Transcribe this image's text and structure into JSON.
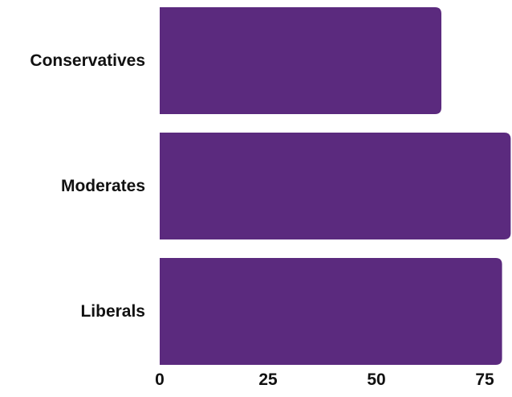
{
  "chart_data": {
    "type": "bar",
    "orientation": "horizontal",
    "categories": [
      "Conservatives",
      "Moderates",
      "Liberals"
    ],
    "values": [
      65,
      81,
      79
    ],
    "xlim": [
      0,
      80
    ],
    "xticks": [
      "0",
      "25",
      "50",
      "75"
    ],
    "xtick_values": [
      0,
      25,
      50,
      75
    ],
    "bar_color": "#5b2a7e",
    "grid": false,
    "legend": "none",
    "title": "",
    "xlabel": "",
    "ylabel": ""
  }
}
